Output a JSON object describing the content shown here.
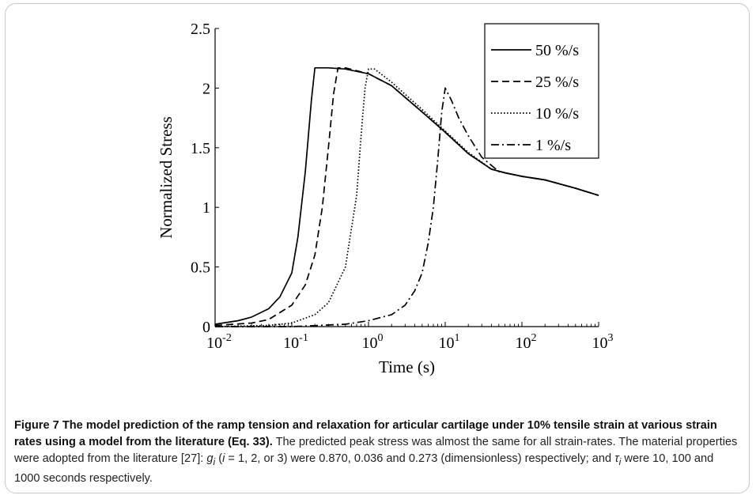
{
  "chart_data": {
    "type": "line",
    "xscale": "log",
    "xlabel": "Time (s)",
    "ylabel": "Normalized Stress",
    "xlim": [
      0.01,
      1000
    ],
    "ylim": [
      0,
      2.5
    ],
    "xticks": [
      0.01,
      0.1,
      1,
      10,
      100,
      1000
    ],
    "xtick_labels": [
      {
        "base": "10",
        "exp": "-2"
      },
      {
        "base": "10",
        "exp": "-1"
      },
      {
        "base": "10",
        "exp": "0"
      },
      {
        "base": "10",
        "exp": "1"
      },
      {
        "base": "10",
        "exp": "2"
      },
      {
        "base": "10",
        "exp": "3"
      }
    ],
    "yticks": [
      0,
      0.5,
      1,
      1.5,
      2,
      2.5
    ],
    "ytick_labels": [
      "0",
      "0.5",
      "1",
      "1.5",
      "2",
      "2.5"
    ],
    "legend_position": "top-right",
    "series": [
      {
        "name": "50 %/s",
        "dash": "solid",
        "x": [
          0.01,
          0.02,
          0.03,
          0.05,
          0.07,
          0.1,
          0.12,
          0.15,
          0.18,
          0.2,
          0.3,
          0.5,
          1,
          2,
          5,
          10,
          20,
          40,
          60,
          100,
          200,
          500,
          1000
        ],
        "y": [
          0.02,
          0.05,
          0.08,
          0.15,
          0.25,
          0.45,
          0.75,
          1.3,
          1.9,
          2.17,
          2.17,
          2.16,
          2.12,
          2.02,
          1.8,
          1.63,
          1.45,
          1.32,
          1.29,
          1.26,
          1.23,
          1.16,
          1.1
        ]
      },
      {
        "name": "25 %/s",
        "dash": "dashed",
        "x": [
          0.01,
          0.03,
          0.05,
          0.1,
          0.15,
          0.2,
          0.25,
          0.3,
          0.35,
          0.4,
          0.5,
          1,
          2,
          5,
          10,
          20,
          40,
          60,
          100,
          200,
          500,
          1000
        ],
        "y": [
          0.01,
          0.03,
          0.06,
          0.18,
          0.35,
          0.6,
          1.0,
          1.5,
          1.95,
          2.17,
          2.17,
          2.12,
          2.02,
          1.8,
          1.63,
          1.45,
          1.32,
          1.29,
          1.26,
          1.23,
          1.16,
          1.1
        ]
      },
      {
        "name": "10 %/s",
        "dash": "dotted",
        "x": [
          0.01,
          0.05,
          0.1,
          0.2,
          0.3,
          0.5,
          0.7,
          0.8,
          0.9,
          1.0,
          1.2,
          2,
          5,
          10,
          20,
          40,
          60,
          100,
          200,
          500,
          1000
        ],
        "y": [
          0.0,
          0.01,
          0.03,
          0.1,
          0.2,
          0.5,
          1.1,
          1.6,
          2.0,
          2.16,
          2.16,
          2.05,
          1.82,
          1.64,
          1.46,
          1.32,
          1.29,
          1.26,
          1.23,
          1.16,
          1.1
        ]
      },
      {
        "name": "1  %/s",
        "dash": "dashdot",
        "x": [
          0.01,
          0.1,
          0.5,
          1,
          2,
          3,
          4,
          5,
          6,
          7,
          8,
          9,
          10,
          12,
          15,
          20,
          30,
          50,
          100,
          200,
          500,
          1000
        ],
        "y": [
          0.0,
          0.0,
          0.02,
          0.05,
          0.1,
          0.18,
          0.3,
          0.45,
          0.7,
          1.0,
          1.4,
          1.8,
          2.0,
          1.9,
          1.75,
          1.6,
          1.42,
          1.3,
          1.26,
          1.23,
          1.16,
          1.1
        ]
      }
    ]
  },
  "caption": {
    "bold": "Figure 7 The model prediction of the ramp tension and relaxation for articular cartilage under 10% tensile strain at various strain rates using a model from the literature (Eq. 33).",
    "text1": " The predicted peak stress was almost the same for all strain-rates. The material properties were adopted from the literature [27]: ",
    "g": "g",
    "i1": "i",
    "text2": " (",
    "i_var": "i",
    "text3": " = 1, 2, or 3) were 0.870, 0.036 and 0.273 (dimensionless) respectively; and ",
    "tau": "τ",
    "i2": "i",
    "text4": " were 10, 100 and 1000 seconds respectively."
  }
}
